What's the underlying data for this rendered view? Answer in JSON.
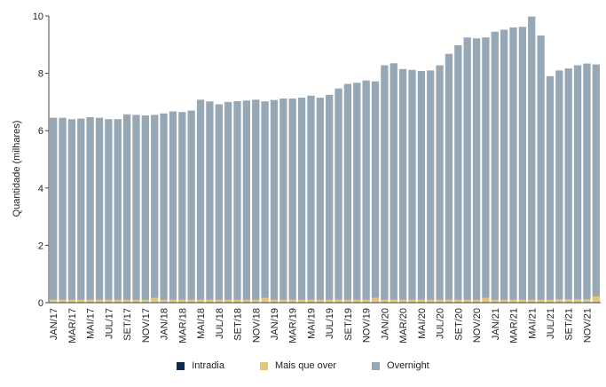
{
  "chart_data": {
    "type": "bar",
    "stacked": true,
    "ylabel": "Quantidade (milhares)",
    "ylim": [
      0,
      10
    ],
    "yticks": [
      0,
      2,
      4,
      6,
      8,
      10
    ],
    "grid": false,
    "legend_position": "bottom",
    "categories": [
      "JAN/17",
      "FEV/17",
      "MAR/17",
      "ABR/17",
      "MAI/17",
      "JUN/17",
      "JUL/17",
      "AGO/17",
      "SET/17",
      "OUT/17",
      "NOV/17",
      "DEZ/17",
      "JAN/18",
      "FEV/18",
      "MAR/18",
      "ABR/18",
      "MAI/18",
      "JUN/18",
      "JUL/18",
      "AGO/18",
      "SET/18",
      "OUT/18",
      "NOV/18",
      "DEZ/18",
      "JAN/19",
      "FEV/19",
      "MAR/19",
      "ABR/19",
      "MAI/19",
      "JUN/19",
      "JUL/19",
      "AGO/19",
      "SET/19",
      "OUT/19",
      "NOV/19",
      "DEZ/19",
      "JAN/20",
      "FEV/20",
      "MAR/20",
      "ABR/20",
      "MAI/20",
      "JUN/20",
      "JUL/20",
      "AGO/20",
      "SET/20",
      "OUT/20",
      "NOV/20",
      "DEZ/20",
      "JAN/21",
      "FEV/21",
      "MAR/21",
      "ABR/21",
      "MAI/21",
      "JUN/21",
      "JUL/21",
      "AGO/21",
      "SET/21",
      "OUT/21",
      "NOV/21",
      "DEZ/21"
    ],
    "tick_labels": [
      "JAN/17",
      "MAR/17",
      "MAI/17",
      "JUL/17",
      "SET/17",
      "NOV/17",
      "JAN/18",
      "MAR/18",
      "MAI/18",
      "JUL/18",
      "SET/18",
      "NOV/18",
      "JAN/19",
      "MAR/19",
      "MAI/19",
      "JUL/19",
      "SET/19",
      "NOV/19",
      "JAN/20",
      "MAR/20",
      "MAI/20",
      "JUL/20",
      "SET/20",
      "NOV/20",
      "JAN/21",
      "MAR/21",
      "MAI/21",
      "JUL/21",
      "SET/21",
      "NOV/21"
    ],
    "series": [
      {
        "name": "Intradia",
        "color": "#0d2a4e",
        "values": [
          0.02,
          0.02,
          0.02,
          0.02,
          0.02,
          0.02,
          0.02,
          0.02,
          0.02,
          0.02,
          0.02,
          0.02,
          0.02,
          0.02,
          0.02,
          0.02,
          0.02,
          0.02,
          0.02,
          0.02,
          0.02,
          0.02,
          0.02,
          0.02,
          0.02,
          0.02,
          0.02,
          0.02,
          0.02,
          0.02,
          0.02,
          0.02,
          0.02,
          0.02,
          0.02,
          0.02,
          0.02,
          0.02,
          0.02,
          0.02,
          0.02,
          0.02,
          0.02,
          0.02,
          0.02,
          0.02,
          0.02,
          0.02,
          0.02,
          0.02,
          0.02,
          0.02,
          0.02,
          0.02,
          0.02,
          0.02,
          0.02,
          0.02,
          0.02,
          0.02
        ]
      },
      {
        "name": "Mais que over",
        "color": "#e2c77a",
        "values": [
          0.08,
          0.08,
          0.08,
          0.08,
          0.08,
          0.08,
          0.08,
          0.08,
          0.08,
          0.08,
          0.08,
          0.15,
          0.08,
          0.08,
          0.08,
          0.08,
          0.08,
          0.08,
          0.08,
          0.08,
          0.08,
          0.08,
          0.08,
          0.15,
          0.08,
          0.08,
          0.08,
          0.08,
          0.08,
          0.08,
          0.08,
          0.08,
          0.08,
          0.08,
          0.08,
          0.15,
          0.08,
          0.08,
          0.08,
          0.08,
          0.08,
          0.08,
          0.08,
          0.08,
          0.08,
          0.08,
          0.08,
          0.15,
          0.08,
          0.08,
          0.08,
          0.08,
          0.08,
          0.08,
          0.08,
          0.1,
          0.1,
          0.1,
          0.1,
          0.2
        ]
      },
      {
        "name": "Overnight",
        "color": "#96a7b5",
        "values": [
          6.35,
          6.35,
          6.3,
          6.32,
          6.37,
          6.35,
          6.3,
          6.3,
          6.47,
          6.45,
          6.43,
          6.38,
          6.5,
          6.57,
          6.55,
          6.6,
          6.98,
          6.92,
          6.82,
          6.9,
          6.93,
          6.95,
          6.98,
          6.85,
          6.97,
          7.02,
          7.02,
          7.05,
          7.12,
          7.05,
          7.15,
          7.37,
          7.53,
          7.57,
          7.65,
          7.55,
          8.18,
          8.25,
          8.05,
          8.02,
          7.98,
          8.0,
          8.18,
          8.58,
          8.88,
          9.15,
          9.12,
          9.08,
          9.35,
          9.42,
          9.5,
          9.52,
          9.88,
          9.22,
          7.8,
          7.98,
          8.05,
          8.16,
          8.22,
          8.09
        ]
      }
    ]
  }
}
